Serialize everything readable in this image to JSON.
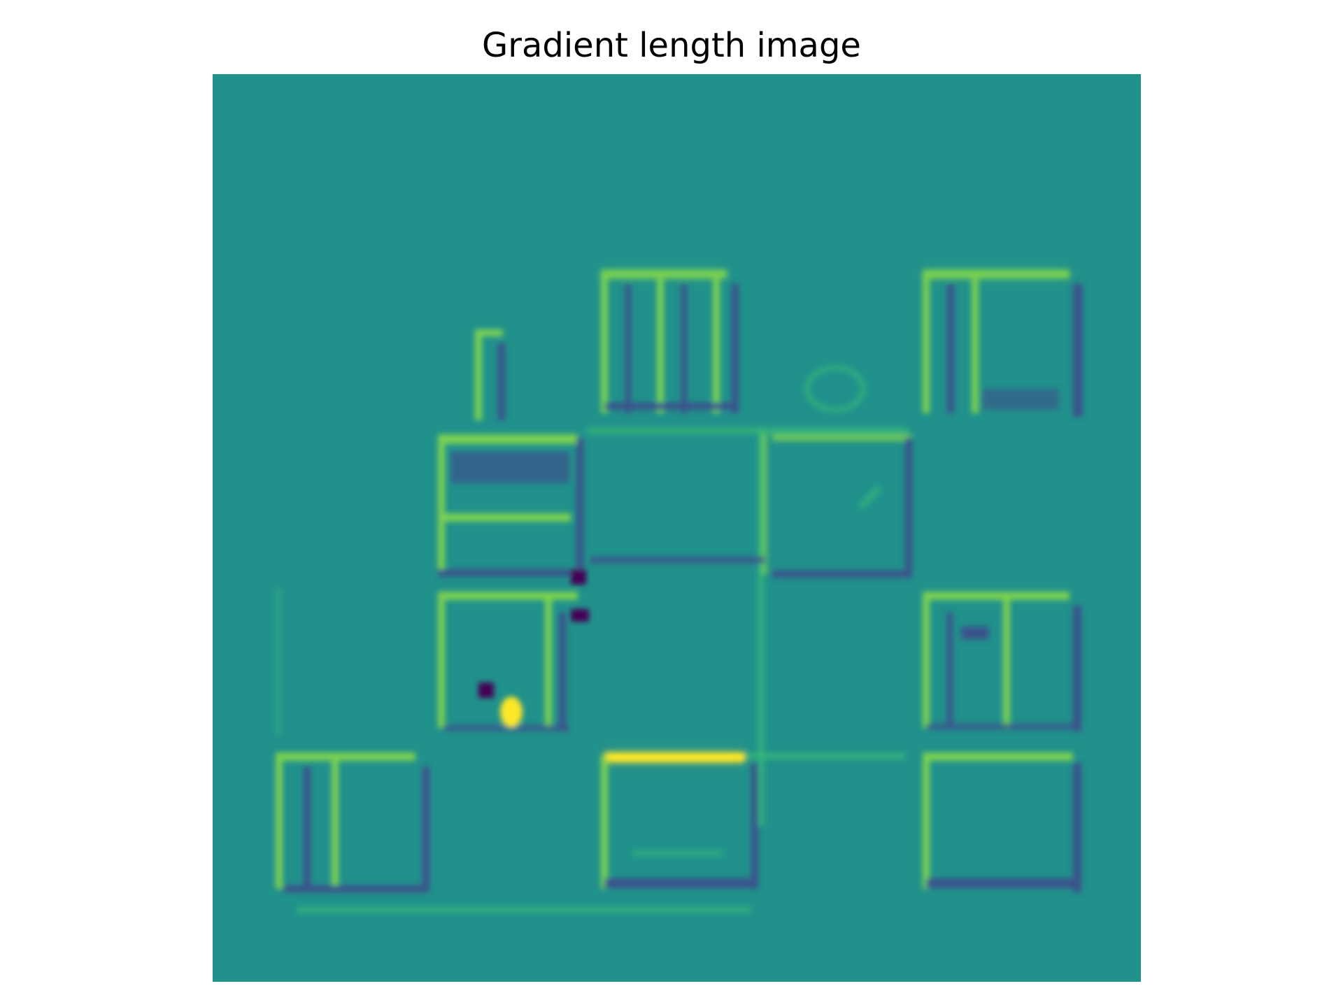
{
  "figure": {
    "title": "Gradient length image",
    "colormap": "viridis",
    "colors": {
      "background": "#21918c",
      "background_dark": "#228a8d",
      "bright_edge": "#7ad151",
      "brightest": "#fde725",
      "mid_edge": "#35b779",
      "dark_edge": "#3b528b",
      "darkest": "#440154"
    }
  }
}
